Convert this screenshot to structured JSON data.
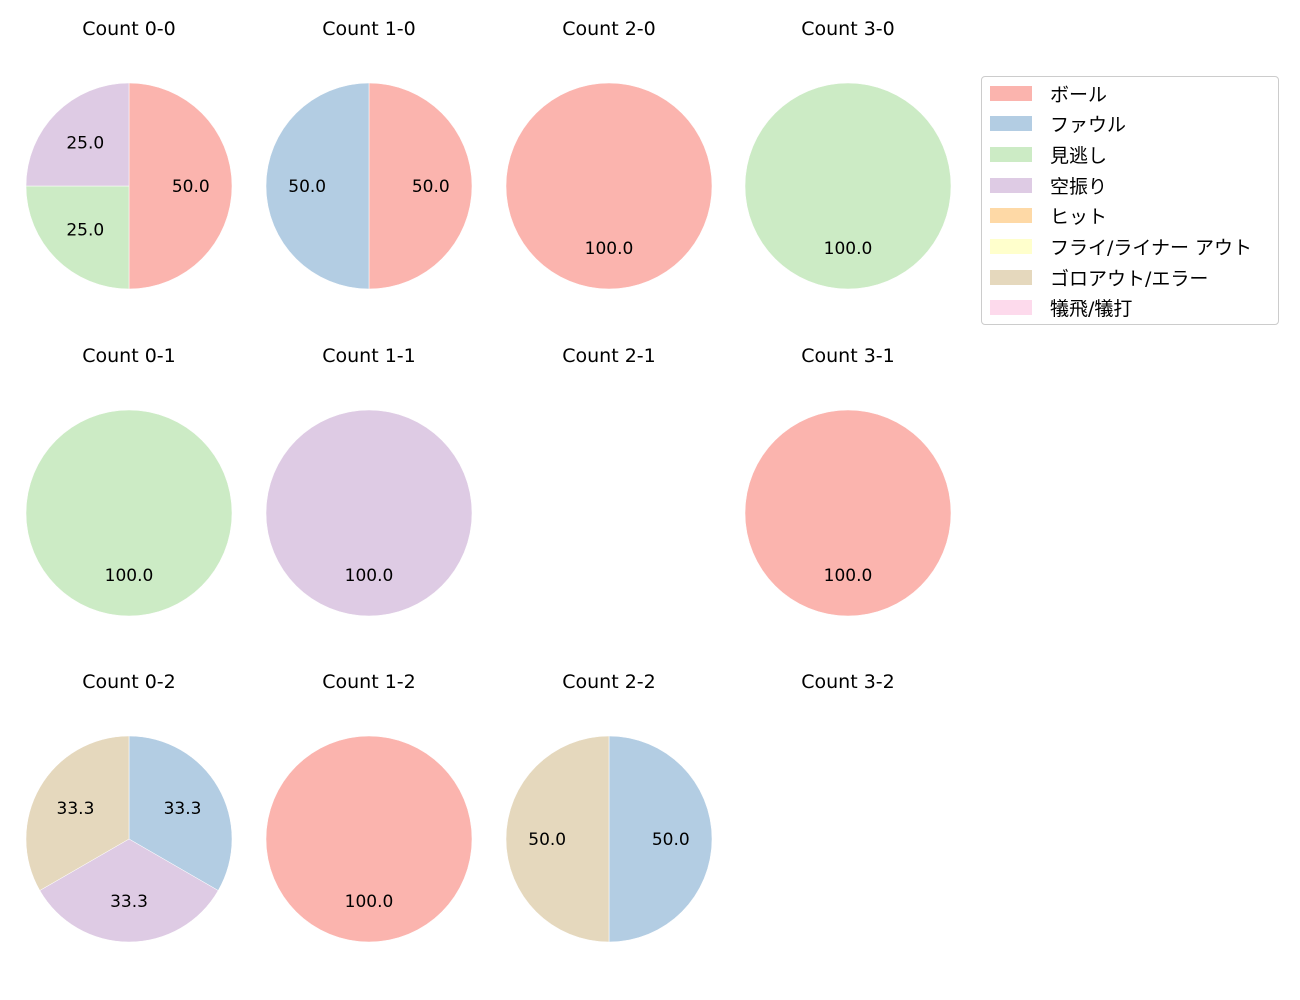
{
  "legend": {
    "items": [
      {
        "label": "ボール",
        "color": "#fbb4ae"
      },
      {
        "label": "ファウル",
        "color": "#b3cde3"
      },
      {
        "label": "見逃し",
        "color": "#ccebc5"
      },
      {
        "label": "空振り",
        "color": "#decbe4"
      },
      {
        "label": "ヒット",
        "color": "#fed9a6"
      },
      {
        "label": "フライ/ライナー アウト",
        "color": "#ffffcc"
      },
      {
        "label": "ゴロアウト/エラー",
        "color": "#e5d8bd"
      },
      {
        "label": "犠飛/犠打",
        "color": "#fddaec"
      }
    ]
  },
  "charts": [
    {
      "title": "Count 0-0"
    },
    {
      "title": "Count 1-0"
    },
    {
      "title": "Count 2-0"
    },
    {
      "title": "Count 3-0"
    },
    {
      "title": "Count 0-1"
    },
    {
      "title": "Count 1-1"
    },
    {
      "title": "Count 2-1"
    },
    {
      "title": "Count 3-1"
    },
    {
      "title": "Count 0-2"
    },
    {
      "title": "Count 1-2"
    },
    {
      "title": "Count 2-2"
    },
    {
      "title": "Count 3-2"
    }
  ],
  "chart_data": [
    {
      "type": "pie",
      "title": "Count 0-0",
      "labels": [
        "ボール",
        "見逃し",
        "空振り"
      ],
      "values": [
        50.0,
        25.0,
        25.0
      ],
      "colors": [
        "#fbb4ae",
        "#ccebc5",
        "#decbe4"
      ]
    },
    {
      "type": "pie",
      "title": "Count 1-0",
      "labels": [
        "ボール",
        "ファウル"
      ],
      "values": [
        50.0,
        50.0
      ],
      "colors": [
        "#fbb4ae",
        "#b3cde3"
      ]
    },
    {
      "type": "pie",
      "title": "Count 2-0",
      "labels": [
        "ボール"
      ],
      "values": [
        100.0
      ],
      "colors": [
        "#fbb4ae"
      ]
    },
    {
      "type": "pie",
      "title": "Count 3-0",
      "labels": [
        "見逃し"
      ],
      "values": [
        100.0
      ],
      "colors": [
        "#ccebc5"
      ]
    },
    {
      "type": "pie",
      "title": "Count 0-1",
      "labels": [
        "見逃し"
      ],
      "values": [
        100.0
      ],
      "colors": [
        "#ccebc5"
      ]
    },
    {
      "type": "pie",
      "title": "Count 1-1",
      "labels": [
        "空振り"
      ],
      "values": [
        100.0
      ],
      "colors": [
        "#decbe4"
      ]
    },
    {
      "type": "pie",
      "title": "Count 2-1",
      "labels": [],
      "values": [],
      "colors": []
    },
    {
      "type": "pie",
      "title": "Count 3-1",
      "labels": [
        "ボール"
      ],
      "values": [
        100.0
      ],
      "colors": [
        "#fbb4ae"
      ]
    },
    {
      "type": "pie",
      "title": "Count 0-2",
      "labels": [
        "ファウル",
        "空振り",
        "ゴロアウト/エラー"
      ],
      "values": [
        33.3,
        33.3,
        33.3
      ],
      "colors": [
        "#b3cde3",
        "#decbe4",
        "#e5d8bd"
      ]
    },
    {
      "type": "pie",
      "title": "Count 1-2",
      "labels": [
        "ボール"
      ],
      "values": [
        100.0
      ],
      "colors": [
        "#fbb4ae"
      ]
    },
    {
      "type": "pie",
      "title": "Count 2-2",
      "labels": [
        "ファウル",
        "ゴロアウト/エラー"
      ],
      "values": [
        50.0,
        50.0
      ],
      "colors": [
        "#b3cde3",
        "#e5d8bd"
      ]
    },
    {
      "type": "pie",
      "title": "Count 3-2",
      "labels": [],
      "values": [],
      "colors": []
    }
  ]
}
